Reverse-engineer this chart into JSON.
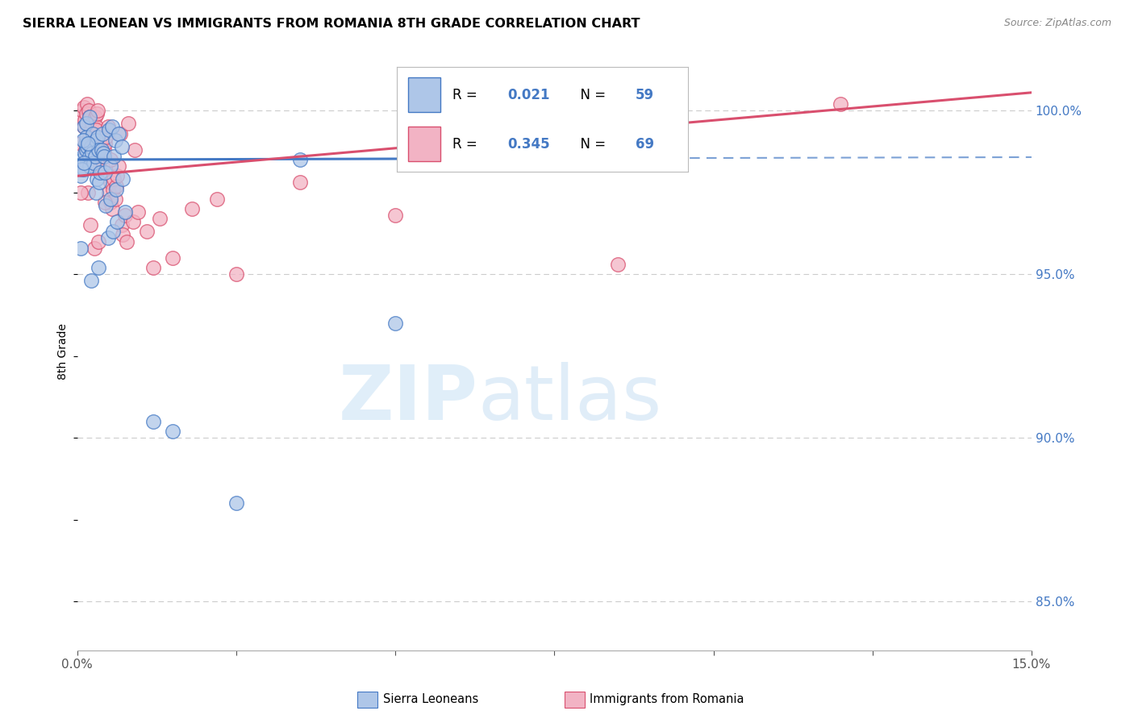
{
  "title": "SIERRA LEONEAN VS IMMIGRANTS FROM ROMANIA 8TH GRADE CORRELATION CHART",
  "source": "Source: ZipAtlas.com",
  "ylabel": "8th Grade",
  "y_ticks": [
    85.0,
    90.0,
    95.0,
    100.0
  ],
  "y_tick_labels": [
    "85.0%",
    "90.0%",
    "95.0%",
    "100.0%"
  ],
  "x_range": [
    0.0,
    15.0
  ],
  "y_range": [
    83.5,
    101.8
  ],
  "blue_R": 0.021,
  "blue_N": 59,
  "pink_R": 0.345,
  "pink_N": 69,
  "blue_color": "#aec6e8",
  "pink_color": "#f2b3c4",
  "blue_line_color": "#4479c4",
  "pink_line_color": "#d94f6e",
  "legend_label_blue": "Sierra Leoneans",
  "legend_label_pink": "Immigrants from Romania",
  "blue_scatter_x": [
    0.05,
    0.08,
    0.1,
    0.1,
    0.12,
    0.13,
    0.14,
    0.15,
    0.15,
    0.16,
    0.18,
    0.19,
    0.2,
    0.2,
    0.22,
    0.23,
    0.25,
    0.26,
    0.28,
    0.29,
    0.3,
    0.31,
    0.32,
    0.34,
    0.35,
    0.36,
    0.38,
    0.4,
    0.41,
    0.42,
    0.44,
    0.45,
    0.48,
    0.5,
    0.52,
    0.53,
    0.55,
    0.56,
    0.58,
    0.6,
    0.61,
    0.63,
    0.65,
    0.7,
    0.72,
    0.75,
    0.06,
    0.07,
    0.09,
    0.11,
    1.2,
    1.5,
    2.5,
    3.5,
    5.0,
    7.5,
    0.33,
    0.22,
    0.17
  ],
  "blue_scatter_y": [
    98.0,
    98.5,
    99.5,
    98.2,
    98.7,
    99.0,
    98.8,
    99.2,
    99.6,
    98.9,
    99.0,
    98.6,
    98.3,
    99.8,
    98.9,
    98.7,
    99.3,
    98.4,
    98.6,
    99.1,
    97.5,
    97.9,
    99.2,
    98.8,
    97.8,
    98.1,
    98.8,
    99.3,
    98.7,
    98.6,
    98.1,
    97.1,
    96.1,
    99.4,
    98.3,
    97.3,
    99.5,
    96.3,
    98.6,
    99.1,
    97.6,
    96.6,
    99.3,
    98.9,
    97.9,
    96.9,
    95.8,
    98.2,
    99.1,
    98.4,
    90.5,
    90.2,
    88.0,
    98.5,
    93.5,
    99.2,
    95.2,
    94.8,
    99.0
  ],
  "pink_scatter_x": [
    0.05,
    0.07,
    0.08,
    0.1,
    0.11,
    0.12,
    0.14,
    0.15,
    0.16,
    0.18,
    0.19,
    0.2,
    0.22,
    0.23,
    0.25,
    0.26,
    0.28,
    0.29,
    0.3,
    0.31,
    0.32,
    0.34,
    0.35,
    0.36,
    0.38,
    0.4,
    0.41,
    0.42,
    0.44,
    0.45,
    0.48,
    0.5,
    0.52,
    0.53,
    0.55,
    0.56,
    0.58,
    0.6,
    0.61,
    0.63,
    0.65,
    0.7,
    0.72,
    0.75,
    0.78,
    0.88,
    0.95,
    1.1,
    1.3,
    1.8,
    2.2,
    1.2,
    1.5,
    2.5,
    3.5,
    5.0,
    8.5,
    12.0,
    0.13,
    0.17,
    0.21,
    0.27,
    0.33,
    0.43,
    0.53,
    0.67,
    0.8,
    0.9,
    0.06
  ],
  "pink_scatter_y": [
    99.0,
    99.8,
    100.0,
    100.1,
    99.5,
    99.7,
    99.9,
    99.0,
    100.2,
    100.0,
    99.8,
    99.2,
    99.4,
    99.6,
    99.3,
    99.1,
    99.8,
    99.5,
    99.4,
    99.9,
    100.0,
    98.5,
    98.2,
    98.7,
    98.9,
    98.3,
    98.6,
    98.8,
    99.0,
    99.2,
    99.5,
    97.5,
    97.2,
    97.8,
    97.0,
    97.6,
    97.9,
    97.3,
    97.7,
    98.0,
    98.3,
    96.5,
    96.2,
    96.8,
    96.0,
    96.6,
    96.9,
    96.3,
    96.7,
    97.0,
    97.3,
    95.2,
    95.5,
    95.0,
    97.8,
    96.8,
    95.3,
    100.2,
    98.8,
    97.5,
    96.5,
    95.8,
    96.0,
    97.2,
    98.5,
    99.3,
    99.6,
    98.8,
    97.5
  ]
}
